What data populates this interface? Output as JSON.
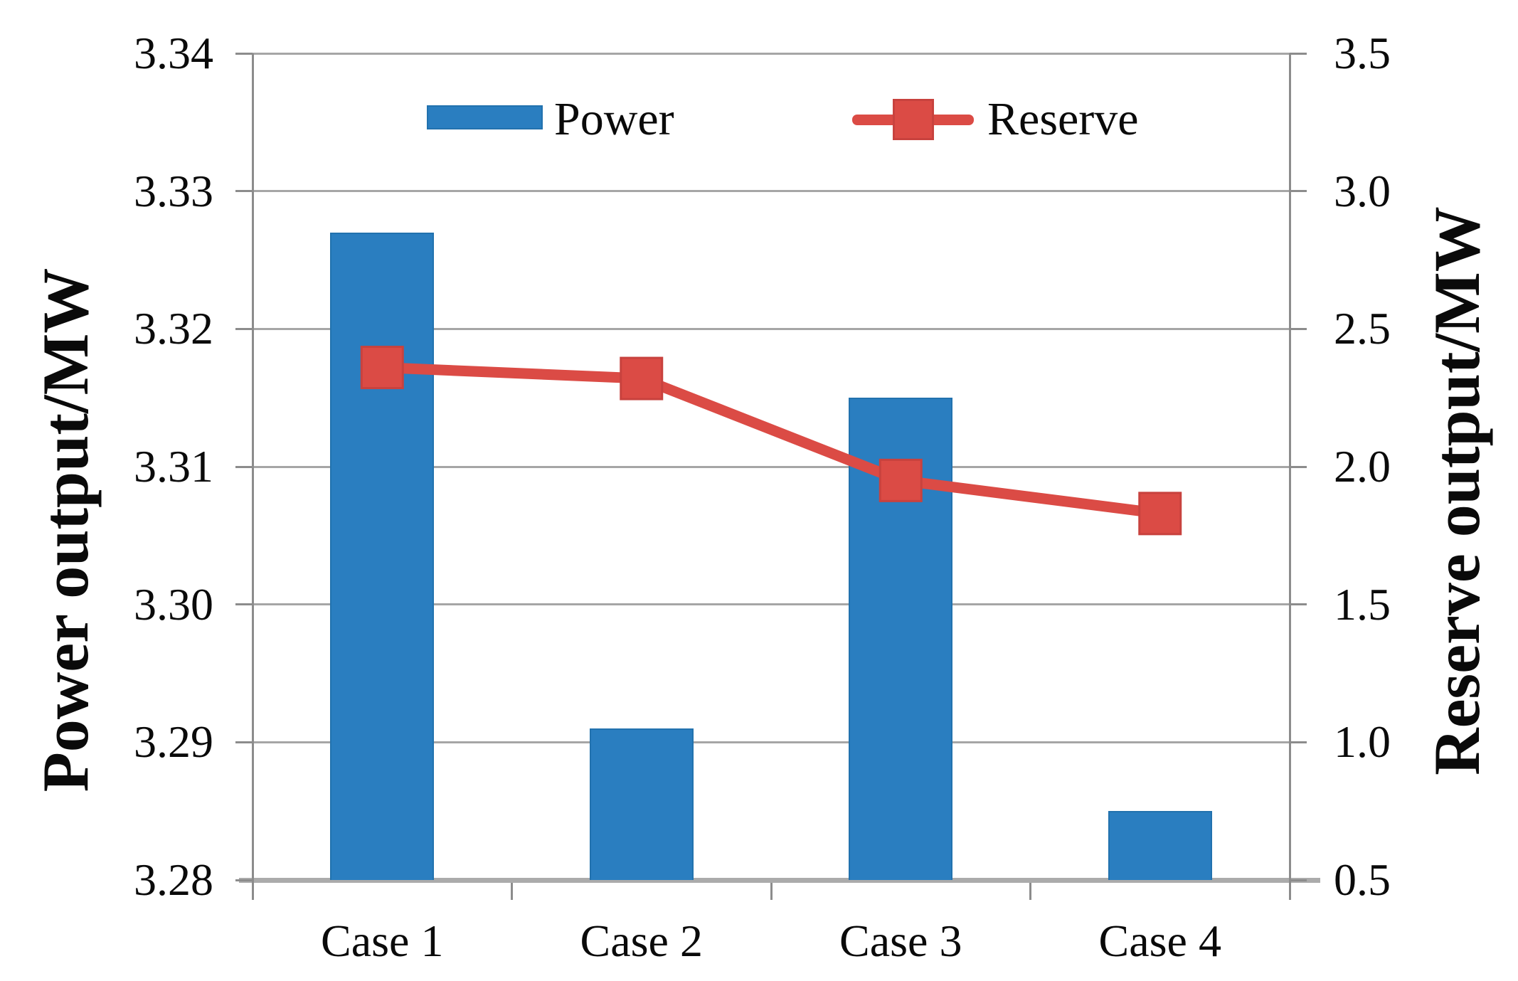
{
  "chart_data": {
    "type": "combo",
    "categories": [
      "Case 1",
      "Case 2",
      "Case 3",
      "Case 4"
    ],
    "series": [
      {
        "name": "Power",
        "type": "bar",
        "axis": "left",
        "color": "#2a7ec0",
        "values": [
          3.327,
          3.291,
          3.315,
          3.285
        ]
      },
      {
        "name": "Reserve",
        "type": "line",
        "axis": "right",
        "color": "#db4b45",
        "marker": "square",
        "values": [
          2.36,
          2.32,
          1.95,
          1.83
        ]
      }
    ],
    "left_axis": {
      "label": "Power output/MW",
      "min": 3.28,
      "max": 3.34,
      "tick_step": 0.01,
      "ticks": [
        "3.34",
        "3.33",
        "3.32",
        "3.31",
        "3.30",
        "3.29",
        "3.28"
      ]
    },
    "right_axis": {
      "label": "Reserve output/MW",
      "min": 0.5,
      "max": 3.5,
      "tick_step": 0.5,
      "ticks": [
        "3.5",
        "3.0",
        "2.5",
        "2.0",
        "1.5",
        "1.0",
        "0.5"
      ]
    },
    "x_axis": {
      "tick_labels": [
        "Case 1",
        "Case 2",
        "Case 3",
        "Case 4"
      ]
    },
    "grid": true,
    "legend_position": "top-center",
    "colors": {
      "bar_fill": "#2a7ec0",
      "bar_border": "#2272ae",
      "line_red": "#db4b45",
      "marker_border": "#c8423e",
      "gridline": "#a6a6a6",
      "axis_line": "#8c8c8c",
      "bottom_axis": "#ababab",
      "text": "#0a0a0a"
    }
  }
}
